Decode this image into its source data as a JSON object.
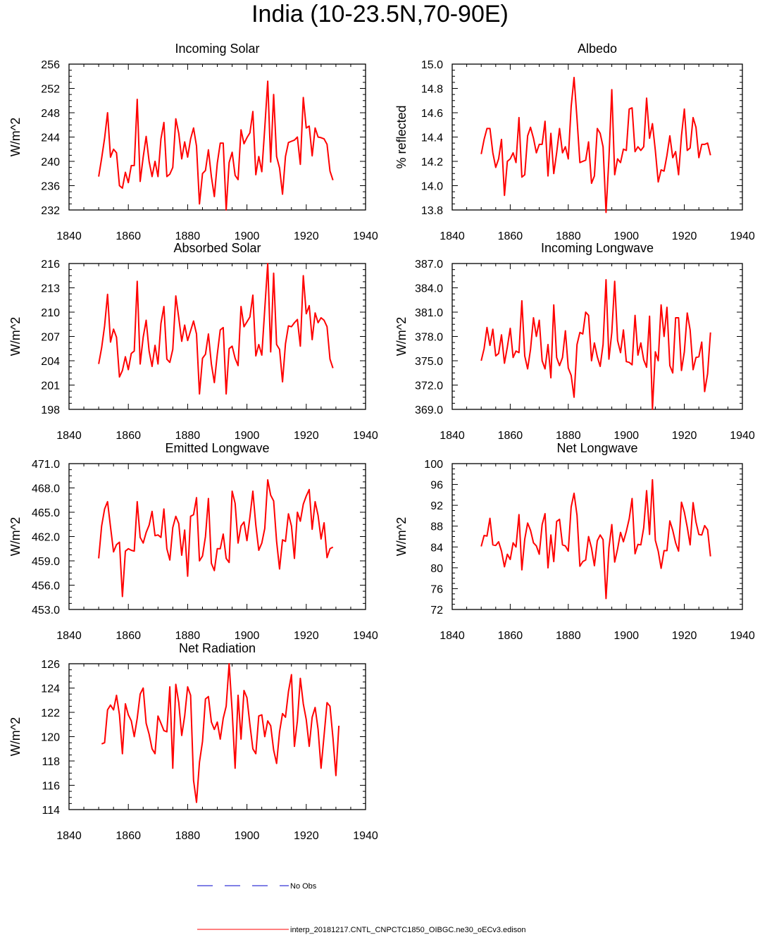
{
  "title": "India (10-23.5N,70-90E)",
  "colors": {
    "model": "#ff0000",
    "obs": "#0000cc",
    "axis": "#000000"
  },
  "legend": [
    {
      "label": "No Obs",
      "style": "dashed",
      "color": "#0000cc"
    },
    {
      "label": "interp_20181217.CNTL_CNPCTC1850_OIBGC.ne30_oECv3.edison",
      "style": "solid",
      "color": "#ff0000"
    }
  ],
  "chart_data": [
    {
      "type": "line",
      "title": "Incoming Solar",
      "ylabel": "W/m^2",
      "xlim": [
        1840,
        1940
      ],
      "xticks": [
        "1840",
        "1860",
        "1880",
        "1900",
        "1920",
        "1940"
      ],
      "ylim": [
        232,
        256
      ],
      "yticks": [
        "232",
        "236",
        "240",
        "244",
        "248",
        "252",
        "256"
      ],
      "x_start": 1850,
      "values": [
        237.5,
        240.5,
        243.8,
        248.0,
        240.7,
        242.0,
        241.4,
        236.0,
        235.6,
        238.2,
        236.5,
        239.3,
        239.3,
        250.2,
        236.7,
        240.7,
        244.1,
        240.0,
        237.5,
        240.0,
        237.5,
        243.7,
        246.4,
        237.5,
        237.9,
        239.0,
        247.0,
        244.6,
        240.4,
        243.2,
        240.7,
        243.7,
        245.5,
        242.5,
        233.0,
        238.0,
        238.5,
        241.9,
        237.5,
        234.2,
        239.7,
        243.0,
        243.0,
        232.0,
        239.8,
        241.5,
        237.7,
        237.0,
        245.2,
        242.9,
        243.9,
        244.7,
        248.2,
        237.8,
        240.8,
        238.3,
        245.5,
        253.2,
        239.9,
        251.0,
        240.8,
        238.9,
        234.6,
        240.8,
        243.1,
        243.3,
        243.5,
        244.0,
        239.5,
        250.5,
        245.5,
        245.8,
        240.9,
        245.5,
        244.0,
        243.9,
        243.7,
        242.8,
        238.4,
        236.9
      ]
    },
    {
      "type": "line",
      "title": "Albedo",
      "ylabel": "% reflected",
      "xlim": [
        1840,
        1940
      ],
      "xticks": [
        "1840",
        "1860",
        "1880",
        "1900",
        "1920",
        "1940"
      ],
      "ylim": [
        13.8,
        15.0
      ],
      "yticks": [
        "13.8",
        "14.0",
        "14.2",
        "14.4",
        "14.6",
        "14.8",
        "15.0"
      ],
      "x_start": 1850,
      "values": [
        14.26,
        14.38,
        14.47,
        14.47,
        14.27,
        14.15,
        14.22,
        14.38,
        13.92,
        14.2,
        14.22,
        14.27,
        14.19,
        14.56,
        14.07,
        14.09,
        14.41,
        14.48,
        14.39,
        14.27,
        14.34,
        14.34,
        14.53,
        14.08,
        14.43,
        14.1,
        14.27,
        14.47,
        14.27,
        14.32,
        14.22,
        14.65,
        14.89,
        14.55,
        14.19,
        14.2,
        14.21,
        14.36,
        14.02,
        14.08,
        14.47,
        14.43,
        14.32,
        13.78,
        14.22,
        14.79,
        14.09,
        14.22,
        14.19,
        14.3,
        14.29,
        14.63,
        14.64,
        14.28,
        14.32,
        14.29,
        14.32,
        14.72,
        14.39,
        14.51,
        14.29,
        14.03,
        14.13,
        14.12,
        14.25,
        14.41,
        14.23,
        14.28,
        14.09,
        14.41,
        14.63,
        14.29,
        14.31,
        14.56,
        14.48,
        14.23,
        14.34,
        14.34,
        14.35,
        14.25
      ]
    },
    {
      "type": "line",
      "title": "Absorbed Solar",
      "ylabel": "W/m^2",
      "xlim": [
        1840,
        1940
      ],
      "xticks": [
        "1840",
        "1860",
        "1880",
        "1900",
        "1920",
        "1940"
      ],
      "ylim": [
        198,
        216
      ],
      "yticks": [
        "198",
        "201",
        "204",
        "207",
        "210",
        "213",
        "216"
      ],
      "x_start": 1850,
      "values": [
        203.6,
        205.6,
        208.3,
        212.2,
        206.3,
        207.9,
        206.9,
        202.0,
        202.8,
        204.5,
        202.9,
        204.9,
        205.2,
        213.8,
        203.6,
        206.9,
        209.0,
        205.2,
        203.3,
        205.9,
        203.6,
        208.6,
        210.7,
        204.2,
        203.8,
        205.4,
        212.0,
        209.3,
        206.4,
        208.4,
        206.5,
        207.7,
        208.9,
        207.3,
        199.9,
        204.3,
        204.8,
        207.3,
        203.6,
        201.3,
        204.8,
        207.8,
        208.1,
        199.9,
        205.5,
        205.8,
        204.3,
        203.4,
        210.7,
        208.2,
        208.8,
        209.4,
        212.1,
        204.6,
        206.0,
        204.7,
        210.4,
        216.0,
        205.1,
        214.8,
        206.0,
        205.4,
        201.4,
        206.1,
        208.3,
        208.2,
        208.7,
        209.1,
        205.8,
        214.5,
        209.8,
        210.8,
        206.6,
        209.9,
        208.7,
        209.3,
        209.0,
        208.2,
        204.2,
        203.1
      ]
    },
    {
      "type": "line",
      "title": "Incoming Longwave",
      "ylabel": "W/m^2",
      "xlim": [
        1840,
        1940
      ],
      "xticks": [
        "1840",
        "1860",
        "1880",
        "1900",
        "1920",
        "1940"
      ],
      "ylim": [
        369.0,
        387.0
      ],
      "yticks": [
        "369.0",
        "372.0",
        "375.0",
        "378.0",
        "381.0",
        "384.0",
        "387.0"
      ],
      "x_start": 1850,
      "values": [
        375.0,
        376.5,
        379.1,
        376.9,
        378.9,
        375.6,
        375.9,
        378.2,
        374.7,
        376.7,
        379.0,
        375.4,
        376.2,
        376.0,
        382.4,
        375.6,
        374.0,
        376.4,
        380.3,
        378.0,
        380.0,
        375.0,
        374.0,
        377.0,
        372.9,
        381.9,
        375.4,
        374.4,
        375.4,
        378.7,
        374.1,
        373.2,
        370.5,
        377.0,
        378.5,
        378.3,
        381.0,
        380.6,
        375.0,
        377.2,
        375.5,
        374.3,
        377.0,
        385.0,
        375.2,
        378.5,
        384.8,
        377.5,
        376.0,
        378.8,
        374.9,
        374.8,
        374.5,
        380.6,
        375.7,
        377.2,
        375.1,
        374.2,
        380.5,
        369.0,
        376.1,
        375.0,
        381.9,
        378.0,
        381.6,
        374.4,
        373.5,
        380.3,
        380.3,
        373.8,
        376.1,
        380.9,
        378.8,
        373.9,
        375.4,
        375.5,
        377.3,
        371.2,
        373.4,
        378.5
      ]
    },
    {
      "type": "line",
      "title": "Emitted Longwave",
      "ylabel": "W/m^2",
      "xlim": [
        1840,
        1940
      ],
      "xticks": [
        "1840",
        "1860",
        "1880",
        "1900",
        "1920",
        "1940"
      ],
      "ylim": [
        453.0,
        471.0
      ],
      "yticks": [
        "453.0",
        "456.0",
        "459.0",
        "462.0",
        "465.0",
        "468.0",
        "471.0"
      ],
      "x_start": 1850,
      "values": [
        459.3,
        463.3,
        465.4,
        466.3,
        463.2,
        460.1,
        461.0,
        461.3,
        454.6,
        460.2,
        460.5,
        460.3,
        460.2,
        466.3,
        461.9,
        461.2,
        462.5,
        463.4,
        465.1,
        462.1,
        462.2,
        461.9,
        465.4,
        460.5,
        459.1,
        463.1,
        464.5,
        463.6,
        459.7,
        462.8,
        457.1,
        464.5,
        464.7,
        466.8,
        459.0,
        459.6,
        462.0,
        466.7,
        458.7,
        457.8,
        460.5,
        460.5,
        462.3,
        459.3,
        458.8,
        467.6,
        466.1,
        461.2,
        463.3,
        463.8,
        461.5,
        464.4,
        467.6,
        463.4,
        460.3,
        461.2,
        463.0,
        469.0,
        467.1,
        466.4,
        461.4,
        458.0,
        461.6,
        461.4,
        464.8,
        463.3,
        459.3,
        465.0,
        463.9,
        466.0,
        467.0,
        467.8,
        462.9,
        466.3,
        464.6,
        461.7,
        463.7,
        459.4,
        460.5,
        460.7
      ]
    },
    {
      "type": "line",
      "title": "Net Longwave",
      "ylabel": "W/m^2",
      "xlim": [
        1840,
        1940
      ],
      "xticks": [
        "1840",
        "1860",
        "1880",
        "1900",
        "1920",
        "1940"
      ],
      "ylim": [
        72,
        100
      ],
      "yticks": [
        "72",
        "76",
        "80",
        "84",
        "88",
        "92",
        "96",
        "100"
      ],
      "x_start": 1850,
      "values": [
        84.1,
        86.2,
        86.1,
        89.5,
        84.4,
        84.3,
        85.0,
        83.2,
        80.2,
        82.6,
        81.6,
        84.8,
        84.0,
        90.2,
        79.6,
        85.5,
        88.6,
        87.2,
        84.8,
        84.2,
        82.6,
        88.3,
        90.4,
        80.0,
        86.3,
        81.2,
        88.9,
        89.3,
        84.4,
        84.2,
        83.2,
        91.7,
        94.3,
        90.1,
        80.3,
        81.2,
        81.5,
        86.0,
        83.8,
        80.4,
        85.2,
        86.3,
        85.4,
        74.1,
        83.8,
        88.3,
        81.1,
        83.6,
        86.8,
        85.0,
        87.0,
        89.4,
        93.3,
        82.7,
        84.5,
        84.4,
        87.7,
        94.8,
        86.4,
        96.9,
        85.3,
        83.2,
        79.9,
        83.3,
        83.3,
        89.0,
        87.2,
        84.8,
        83.2,
        92.6,
        90.7,
        87.8,
        84.4,
        92.5,
        88.8,
        86.4,
        86.3,
        88.1,
        87.3,
        82.2
      ]
    },
    {
      "type": "line",
      "title": "Net Radiation",
      "ylabel": "W/m^2",
      "xlim": [
        1840,
        1940
      ],
      "xticks": [
        "1840",
        "1860",
        "1880",
        "1900",
        "1920",
        "1940"
      ],
      "ylim": [
        114,
        126
      ],
      "yticks": [
        "114",
        "116",
        "118",
        "120",
        "122",
        "124",
        "126"
      ],
      "x_start": 1851,
      "values": [
        119.4,
        119.5,
        122.2,
        122.6,
        122.2,
        123.4,
        121.8,
        118.6,
        122.7,
        121.8,
        121.3,
        120.0,
        121.5,
        123.5,
        124.0,
        121.1,
        120.2,
        119.0,
        118.6,
        121.7,
        121.1,
        120.5,
        120.4,
        124.1,
        117.4,
        124.3,
        122.8,
        120.1,
        121.7,
        124.1,
        123.4,
        116.4,
        114.6,
        117.9,
        119.6,
        123.1,
        123.3,
        121.2,
        120.6,
        121.2,
        119.8,
        121.5,
        122.5,
        126.0,
        122.1,
        117.4,
        123.4,
        119.8,
        123.8,
        123.2,
        121.0,
        119.0,
        118.6,
        121.7,
        121.8,
        120.0,
        121.3,
        120.9,
        118.9,
        117.8,
        120.4,
        121.9,
        121.6,
        123.7,
        125.1,
        119.2,
        121.3,
        124.8,
        122.7,
        121.4,
        119.2,
        121.6,
        122.4,
        120.6,
        117.4,
        120.1,
        122.8,
        122.5,
        119.9,
        116.8,
        120.9
      ]
    }
  ]
}
